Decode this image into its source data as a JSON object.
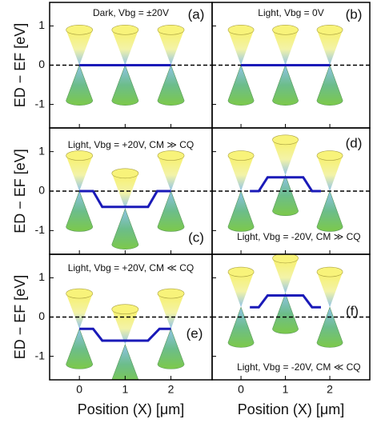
{
  "chart_data": [
    {
      "type": "line",
      "annotation": "Dark, Vbg = ±20V",
      "panel_label": "(a)",
      "ylabel": "ED − EF [eV]",
      "x": [
        0,
        2
      ],
      "values": [
        0,
        0
      ],
      "cone_x": [
        0,
        1,
        2
      ],
      "cone_values": [
        0,
        0,
        0
      ],
      "color": "#1a1ab8",
      "xlim": [
        -0.65,
        2.9
      ],
      "ylim": [
        -1.6,
        1.6
      ],
      "xticks": [
        0,
        1,
        2
      ],
      "yticks": [
        -1,
        0,
        1
      ]
    },
    {
      "type": "line",
      "annotation": "Light, Vbg = 0V",
      "panel_label": "(b)",
      "x": [
        0,
        2
      ],
      "values": [
        0,
        0
      ],
      "cone_x": [
        0,
        1,
        2
      ],
      "cone_values": [
        0,
        0,
        0
      ],
      "color": "#1a1ab8",
      "xlim": [
        -0.65,
        2.9
      ],
      "ylim": [
        -1.6,
        1.6
      ],
      "xticks": [
        0,
        1,
        2
      ],
      "yticks": [
        -1,
        0,
        1
      ]
    },
    {
      "type": "line",
      "annotation": "Light, Vbg = +20V, CM ≫ CQ",
      "panel_label": "(c)",
      "ylabel": "ED − EF [eV]",
      "x": [
        0,
        0.3,
        0.5,
        1.5,
        1.7,
        2
      ],
      "values": [
        0,
        0,
        -0.4,
        -0.4,
        0,
        0
      ],
      "cone_x": [
        0,
        1,
        2
      ],
      "cone_values": [
        0,
        -0.45,
        0
      ],
      "color": "#1a1ab8",
      "xlim": [
        -0.65,
        2.9
      ],
      "ylim": [
        -1.6,
        1.6
      ],
      "xticks": [
        0,
        1,
        2
      ],
      "yticks": [
        -1,
        0,
        1
      ]
    },
    {
      "type": "line",
      "annotation": "Light, Vbg = -20V, CM ≫ CQ",
      "panel_label": "(d)",
      "x": [
        0.2,
        0.4,
        0.6,
        1.4,
        1.6,
        1.8
      ],
      "values": [
        0,
        0,
        0.35,
        0.35,
        0,
        0
      ],
      "cone_x": [
        0,
        1,
        2
      ],
      "cone_values": [
        0,
        0.4,
        0
      ],
      "color": "#1a1ab8",
      "xlim": [
        -0.65,
        2.9
      ],
      "ylim": [
        -1.6,
        1.6
      ],
      "xticks": [
        0,
        1,
        2
      ],
      "yticks": [
        -1,
        0,
        1
      ]
    },
    {
      "type": "line",
      "annotation": "Light, Vbg = +20V, CM ≪ CQ",
      "panel_label": "(e)",
      "ylabel": "ED − EF [eV]",
      "xlabel": "Position (X) [μm]",
      "x": [
        0,
        0.3,
        0.5,
        1.5,
        1.75,
        2
      ],
      "values": [
        -0.3,
        -0.3,
        -0.6,
        -0.6,
        -0.3,
        -0.3
      ],
      "cone_x": [
        0,
        1,
        2
      ],
      "cone_values": [
        -0.3,
        -0.7,
        -0.3
      ],
      "color": "#1a1ab8",
      "xlim": [
        -0.65,
        2.9
      ],
      "ylim": [
        -1.6,
        1.6
      ],
      "xticks": [
        0,
        1,
        2
      ],
      "yticks": [
        -1,
        0,
        1
      ]
    },
    {
      "type": "line",
      "annotation": "Light, Vbg = -20V, CM ≪ CQ",
      "panel_label": "(f)",
      "xlabel": "Position (X) [μm]",
      "x": [
        0.2,
        0.4,
        0.6,
        1.4,
        1.6,
        1.8
      ],
      "values": [
        0.25,
        0.25,
        0.55,
        0.55,
        0.25,
        0.25
      ],
      "cone_x": [
        0,
        1,
        2
      ],
      "cone_values": [
        0.25,
        0.6,
        0.25
      ],
      "color": "#1a1ab8",
      "xlim": [
        -0.65,
        2.9
      ],
      "ylim": [
        -1.6,
        1.6
      ],
      "xticks": [
        0,
        1,
        2
      ],
      "yticks": [
        -1,
        0,
        1
      ]
    }
  ]
}
